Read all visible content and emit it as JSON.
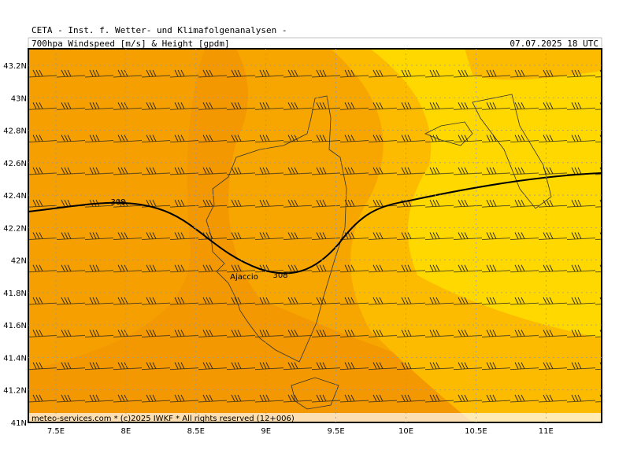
{
  "header": {
    "title": "CETA - Inst. f. Wetter- und Klimafolgenanalysen -",
    "product": "700hpa Windspeed [m/s] & Height [gpdm]",
    "valid_time": "07.07.2025 18 UTC"
  },
  "map": {
    "lon_labels": [
      "7.5E",
      "8E",
      "8.5E",
      "9E",
      "9.5E",
      "10E",
      "10.5E",
      "11E"
    ],
    "lat_labels": [
      "43.2N",
      "43N",
      "42.8N",
      "42.6N",
      "42.4N",
      "42.2N",
      "42N",
      "41.8N",
      "41.6N",
      "41.4N",
      "41.2N",
      "41N"
    ],
    "contour_labels": [
      "308",
      "308"
    ],
    "places": [
      "Ajaccio"
    ],
    "footer": "meteo-services.com * (c)2025 IWKF * All rights reserved (12+006)"
  }
}
